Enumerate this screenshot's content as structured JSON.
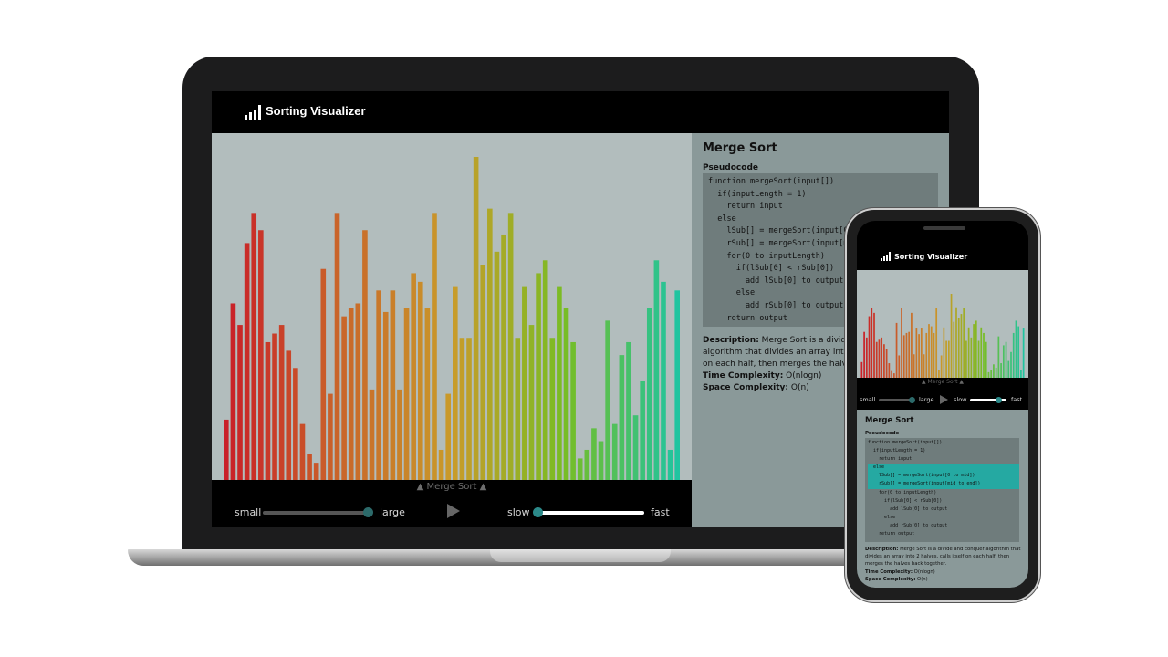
{
  "app": {
    "title": "Sorting Visualizer",
    "logo_icon": "bar-chart-icon"
  },
  "visualizer": {
    "algorithm_caption": "▲ Merge Sort ▲",
    "bar_values": [
      14,
      41,
      36,
      55,
      62,
      58,
      32,
      34,
      36,
      30,
      26,
      13,
      6,
      4,
      49,
      20,
      62,
      38,
      40,
      41,
      58,
      21,
      44,
      39,
      44,
      21,
      40,
      48,
      46,
      40,
      62,
      7,
      20,
      45,
      33,
      33,
      75,
      50,
      63,
      53,
      57,
      62,
      33,
      45,
      36,
      48,
      51,
      33,
      45,
      40,
      32,
      5,
      7,
      12,
      9,
      37,
      13,
      29,
      32,
      15,
      23,
      40,
      51,
      46,
      7,
      44
    ],
    "bar_count": 66,
    "size_slider": {
      "left_label": "small",
      "right_label": "large",
      "value": 0.9
    },
    "speed_slider": {
      "left_label": "slow",
      "right_label": "fast",
      "value": 0.05
    },
    "play_icon": "play-icon"
  },
  "info": {
    "heading": "Merge Sort",
    "pseudocode_label": "Pseudocode",
    "pseudocode": [
      "function mergeSort(input[])",
      "  if(inputLength = 1)",
      "    return input",
      "  else",
      "    lSub[] = mergeSort(input[0 to mid])",
      "    rSub[] = mergeSort(input[mid to end])",
      "    for(0 to inputLength)",
      "      if(lSub[0] < rSub[0])",
      "        add lSub[0] to output",
      "      else",
      "        add rSub[0] to output",
      "    return output"
    ],
    "highlighted_lines_phone": [
      3,
      4,
      5
    ],
    "description_label": "Description:",
    "description_text": " Merge Sort is a divide and conquer algorithm that divides an array into 2 halves, calls itself on each half, then merges the halves back together.",
    "time_label": "Time Complexity:",
    "time_value": " O(nlogn)",
    "space_label": "Space Complexity:",
    "space_value": " O(n)"
  },
  "colors": {
    "chart_bg": "#b2bdbd",
    "panel_bg": "#8a9999",
    "code_bg": "#6f7c7c",
    "highlight": "#25a9a2",
    "gradient": [
      "#c91f28",
      "#c9652a",
      "#c99b2a",
      "#78bd24",
      "#20c4a0"
    ]
  }
}
